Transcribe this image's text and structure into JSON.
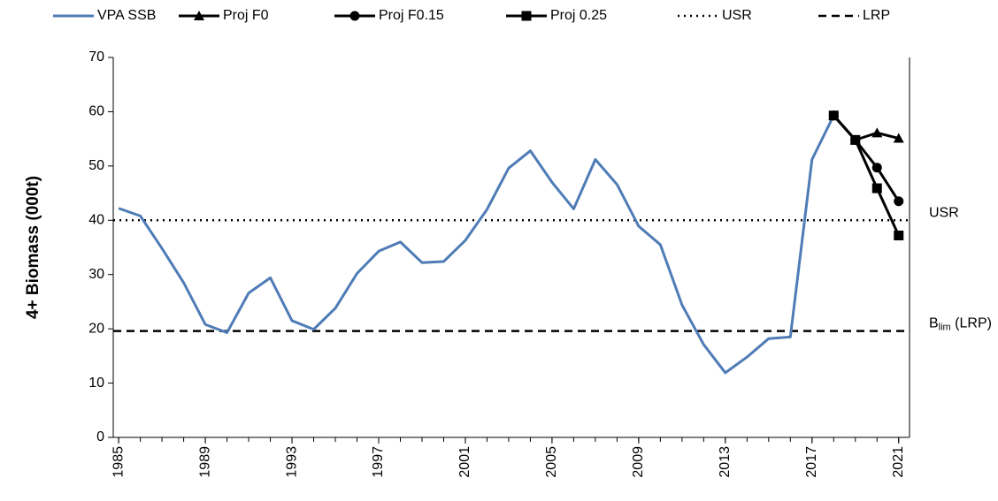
{
  "chart_data": {
    "type": "line",
    "y_label": "4+ Biomass (000t)",
    "x": [
      1985,
      1986,
      1987,
      1988,
      1989,
      1990,
      1991,
      1992,
      1993,
      1994,
      1995,
      1996,
      1997,
      1998,
      1999,
      2000,
      2001,
      2002,
      2003,
      2004,
      2005,
      2006,
      2007,
      2008,
      2009,
      2010,
      2011,
      2012,
      2013,
      2014,
      2015,
      2016,
      2017,
      2018,
      2019,
      2020,
      2021
    ],
    "series": [
      {
        "name": "VPA SSB",
        "color": "#4f7cb6",
        "marker": "none",
        "values": [
          42.2,
          40.8,
          34.8,
          28.5,
          20.8,
          19.3,
          26.6,
          29.4,
          21.5,
          19.9,
          23.8,
          30.2,
          34.3,
          36.0,
          32.2,
          32.4,
          36.3,
          42.0,
          49.6,
          52.8,
          47.0,
          42.1,
          51.2,
          46.6,
          38.9,
          35.5,
          24.4,
          17.1,
          11.9,
          14.8,
          18.2,
          18.5,
          51.2,
          59.3,
          null,
          null,
          null
        ]
      },
      {
        "name": "Proj F0",
        "color": "#000000",
        "marker": "triangle",
        "values": [
          null,
          null,
          null,
          null,
          null,
          null,
          null,
          null,
          null,
          null,
          null,
          null,
          null,
          null,
          null,
          null,
          null,
          null,
          null,
          null,
          null,
          null,
          null,
          null,
          null,
          null,
          null,
          null,
          null,
          null,
          null,
          null,
          null,
          59.3,
          54.8,
          56.1,
          55.1
        ]
      },
      {
        "name": "Proj F0.15",
        "color": "#000000",
        "marker": "circle",
        "values": [
          null,
          null,
          null,
          null,
          null,
          null,
          null,
          null,
          null,
          null,
          null,
          null,
          null,
          null,
          null,
          null,
          null,
          null,
          null,
          null,
          null,
          null,
          null,
          null,
          null,
          null,
          null,
          null,
          null,
          null,
          null,
          null,
          null,
          59.3,
          54.8,
          49.7,
          43.5
        ]
      },
      {
        "name": "Proj 0.25",
        "color": "#000000",
        "marker": "square",
        "values": [
          null,
          null,
          null,
          null,
          null,
          null,
          null,
          null,
          null,
          null,
          null,
          null,
          null,
          null,
          null,
          null,
          null,
          null,
          null,
          null,
          null,
          null,
          null,
          null,
          null,
          null,
          null,
          null,
          null,
          null,
          null,
          null,
          null,
          59.3,
          54.8,
          45.9,
          37.2
        ]
      }
    ],
    "reference_lines": [
      {
        "name": "USR",
        "value": 40,
        "style": "dotted",
        "label": {
          "main": "USR"
        }
      },
      {
        "name": "LRP",
        "value": 19.6,
        "style": "dashed",
        "label": {
          "main": "B",
          "sub": "lim",
          "rest": " (LRP)"
        }
      }
    ],
    "xlim": [
      1984.75,
      2021.5
    ],
    "xticks": [
      1985,
      1989,
      1993,
      1997,
      2001,
      2005,
      2009,
      2013,
      2017,
      2021
    ],
    "ylim": [
      0,
      70
    ],
    "yticks": [
      0,
      10,
      20,
      30,
      40,
      50,
      60,
      70
    ],
    "grid": false
  }
}
